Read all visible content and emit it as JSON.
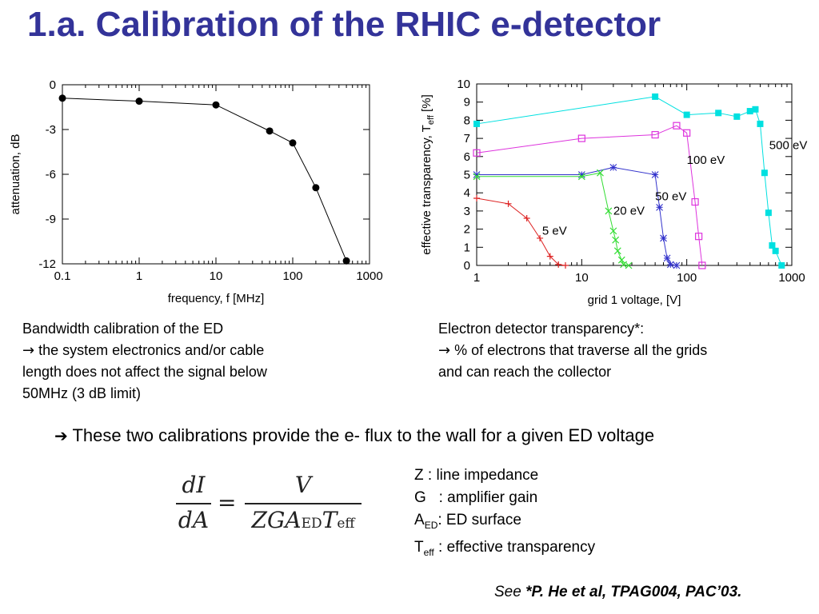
{
  "title": "1.a. Calibration of the RHIC e-detector",
  "bandwidth_caption": {
    "line1": "Bandwidth calibration of the ED",
    "arrow": "→",
    "line2": "the system electronics and/or cable",
    "line3": "length does not affect the signal below",
    "line4": "50MHz (3 dB limit)"
  },
  "transparency_caption": {
    "line1": "Electron detector transparency*:",
    "arrow": "→",
    "line2": "% of electrons that traverse all the grids",
    "line3": "and can reach the collector"
  },
  "conclusion": {
    "arrow": "➔",
    "text": "These two calibrations provide the e- flux to the wall for a given ED voltage"
  },
  "equation": {
    "lhs_num": "dI",
    "lhs_den": "dA",
    "equals": "=",
    "rhs_num": "V",
    "rhs_den_main": "ZGA",
    "rhs_den_sub1": "ED",
    "rhs_den_T": "T",
    "rhs_den_sub2": "eff"
  },
  "definitions": {
    "z": "Z : line impedance",
    "g": "G   : amplifier gain",
    "a_main": "A",
    "a_sub": "ED",
    "a_rest": ": ED surface",
    "t_main": "T",
    "t_sub": "eff",
    "t_rest": " : effective transparency"
  },
  "citation": {
    "see": "See",
    "ref": "*P. He et al, TPAG004, PAC’03."
  },
  "chart_data": [
    {
      "type": "line",
      "xlabel": "frequency, f [MHz]",
      "ylabel": "attenuation, dB",
      "x_scale": "log",
      "xlim": [
        0.1,
        1000
      ],
      "ylim": [
        -12,
        0
      ],
      "xticks": [
        "0.1",
        "1",
        "10",
        "100",
        "1000"
      ],
      "yticks": [
        "0",
        "-3",
        "-6",
        "-9",
        "-12"
      ],
      "grid": false,
      "series": [
        {
          "color": "#000000",
          "marker": "dot",
          "x": [
            0.1,
            1,
            10,
            50,
            100,
            200,
            500
          ],
          "y": [
            -0.9,
            -1.1,
            -1.35,
            -3.1,
            -3.9,
            -6.9,
            -11.8
          ]
        }
      ]
    },
    {
      "type": "line",
      "xlabel": "grid 1 voltage, [V]",
      "ylabel": "effective transparency, T",
      "ylabel_sub": "eff",
      "ylabel_tail": " [%]",
      "x_scale": "log",
      "xlim": [
        1,
        1000
      ],
      "ylim": [
        0,
        10
      ],
      "xticks": [
        "1",
        "10",
        "100",
        "1000"
      ],
      "yticks": [
        "0",
        "1",
        "2",
        "3",
        "4",
        "5",
        "6",
        "7",
        "8",
        "9",
        "10"
      ],
      "grid": false,
      "series": [
        {
          "name": "500 eV",
          "color": "#00e0e0",
          "marker": "filled-square",
          "x": [
            1,
            50,
            100,
            200,
            300,
            400,
            450,
            500,
            550,
            600,
            650,
            700,
            800
          ],
          "y": [
            7.8,
            9.3,
            8.3,
            8.4,
            8.2,
            8.5,
            8.6,
            7.8,
            5.1,
            2.9,
            1.1,
            0.8,
            0
          ]
        },
        {
          "name": "100 eV",
          "color": "#dd33dd",
          "marker": "open-square",
          "x": [
            1,
            10,
            50,
            80,
            100,
            120,
            130,
            140
          ],
          "y": [
            6.2,
            7.0,
            7.2,
            7.7,
            7.3,
            3.5,
            1.6,
            0
          ]
        },
        {
          "name": "50 eV",
          "color": "#3333cc",
          "marker": "asterisk",
          "x": [
            1,
            10,
            20,
            50,
            55,
            60,
            65,
            70,
            80
          ],
          "y": [
            5.0,
            5.0,
            5.4,
            5.0,
            3.2,
            1.5,
            0.4,
            0.05,
            0
          ]
        },
        {
          "name": "20 eV",
          "color": "#33dd33",
          "marker": "cross",
          "x": [
            1,
            10,
            15,
            18,
            20,
            21,
            22,
            24,
            25,
            28
          ],
          "y": [
            4.9,
            4.9,
            5.1,
            3.0,
            1.9,
            1.4,
            0.8,
            0.3,
            0.05,
            0
          ]
        },
        {
          "name": "5 eV",
          "color": "#dd2222",
          "marker": "plus",
          "x": [
            1,
            2,
            3,
            4,
            5,
            6,
            7
          ],
          "y": [
            3.7,
            3.4,
            2.6,
            1.5,
            0.5,
            0.05,
            0
          ]
        }
      ]
    }
  ]
}
